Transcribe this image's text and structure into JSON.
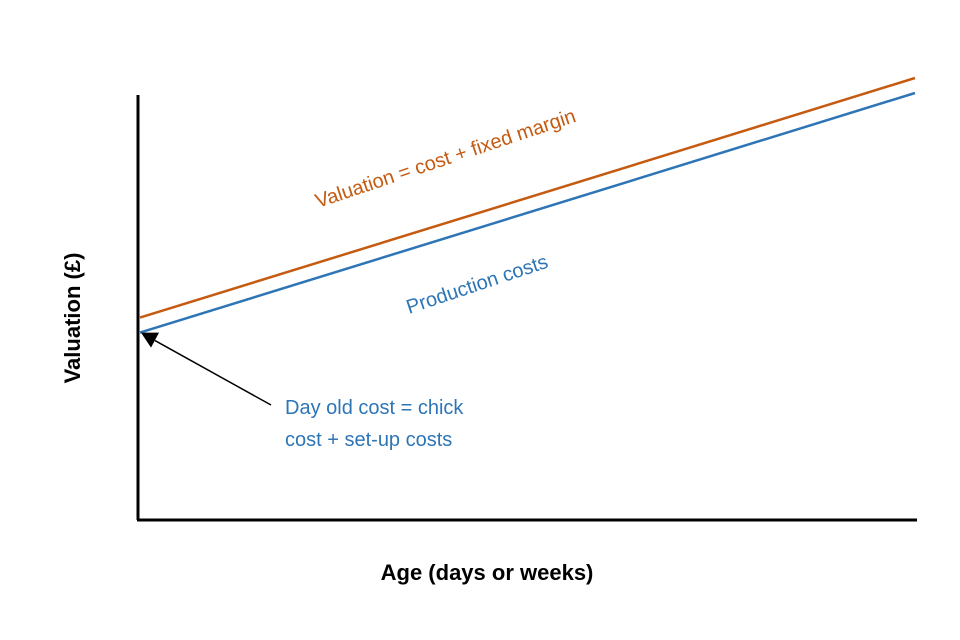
{
  "chart_data": {
    "type": "line",
    "xlabel": "Age (days or weeks)",
    "ylabel": "Valuation (£)",
    "grid": false,
    "x_ticks_labeled": false,
    "y_ticks_labeled": false,
    "series": [
      {
        "name": "Valuation = cost + fixed margin",
        "color": "#c55a11",
        "x": [
          0,
          100
        ],
        "y": [
          45.8,
          100
        ]
      },
      {
        "name": "Production costs",
        "color": "#2e75b6",
        "x": [
          0,
          100
        ],
        "y": [
          42.4,
          96.6
        ]
      }
    ],
    "annotation": {
      "lines": [
        "Day old cost = chick",
        "cost + set-up costs"
      ],
      "color": "#2e75b6",
      "arrow_color": "#000000",
      "points_to": {
        "series": "Production costs",
        "x": 0
      }
    }
  }
}
